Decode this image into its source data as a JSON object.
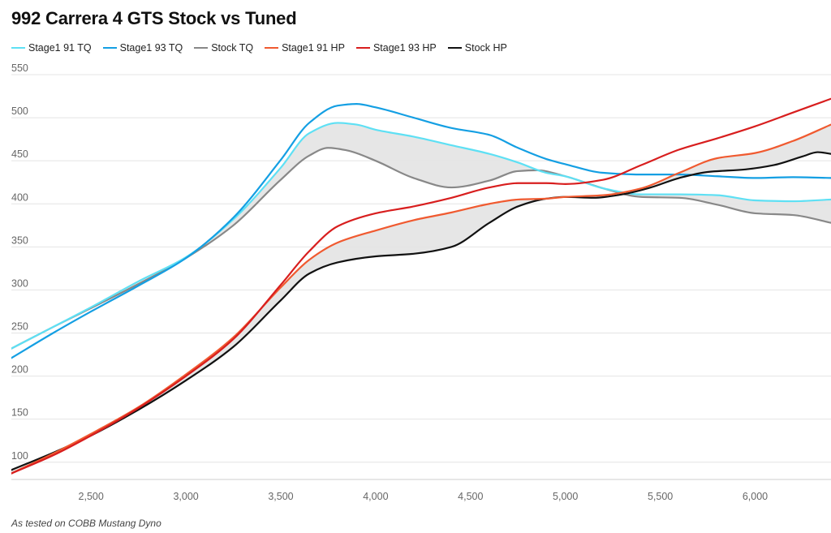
{
  "chart_data": {
    "type": "line",
    "title": "992 Carrera 4 GTS Stock vs Tuned",
    "footnote": "As tested on COBB Mustang Dyno",
    "xlabel": "",
    "ylabel": "",
    "xlim": [
      2080,
      6400
    ],
    "ylim": [
      80,
      550
    ],
    "x_ticks": [
      2500,
      3000,
      3500,
      4000,
      4500,
      5000,
      5500,
      6000
    ],
    "x_tick_labels": [
      "2,500",
      "3,000",
      "3,500",
      "4,000",
      "4,500",
      "5,000",
      "5,500",
      "6,000"
    ],
    "y_ticks": [
      100,
      150,
      200,
      250,
      300,
      350,
      400,
      450,
      500,
      550
    ],
    "y_tick_labels": [
      "100",
      "150",
      "200",
      "250",
      "300",
      "350",
      "400",
      "450",
      "500",
      "550"
    ],
    "grid": "horizontal",
    "legend_position": "top-left",
    "fill_between": [
      {
        "upper": "Stage1 91 TQ",
        "lower": "Stock TQ",
        "color": "#e3e3e3"
      },
      {
        "upper": "Stage1 91 HP",
        "lower": "Stock HP",
        "color": "#e3e3e3"
      }
    ],
    "series": [
      {
        "name": "Stage1 91 TQ",
        "color": "#5ee0f4",
        "x": [
          2080,
          2300,
          2500,
          2750,
          3000,
          3250,
          3500,
          3650,
          3800,
          3900,
          4000,
          4200,
          4400,
          4600,
          4750,
          4900,
          5000,
          5200,
          5400,
          5600,
          5800,
          6000,
          6200,
          6400
        ],
        "y": [
          232,
          257,
          280,
          310,
          338,
          382,
          442,
          482,
          494,
          492,
          486,
          478,
          468,
          458,
          448,
          436,
          432,
          418,
          411,
          411,
          410,
          404,
          403,
          405
        ]
      },
      {
        "name": "Stage1 93 TQ",
        "color": "#149fe3",
        "x": [
          2080,
          2300,
          2500,
          2750,
          3000,
          3250,
          3500,
          3650,
          3800,
          3900,
          4000,
          4200,
          4400,
          4600,
          4750,
          4900,
          5000,
          5200,
          5400,
          5600,
          5800,
          6000,
          6200,
          6400
        ],
        "y": [
          221,
          250,
          275,
          305,
          337,
          384,
          451,
          494,
          514,
          516,
          512,
          500,
          488,
          480,
          465,
          452,
          446,
          436,
          434,
          434,
          432,
          430,
          431,
          430
        ]
      },
      {
        "name": "Stock TQ",
        "color": "#888888",
        "x": [
          2080,
          2300,
          2500,
          2750,
          3000,
          3250,
          3500,
          3650,
          3750,
          3850,
          4000,
          4200,
          4400,
          4600,
          4750,
          4850,
          5000,
          5200,
          5400,
          5600,
          5800,
          6000,
          6200,
          6400
        ],
        "y": [
          232,
          257,
          279,
          307,
          337,
          375,
          428,
          456,
          465,
          462,
          450,
          430,
          419,
          427,
          438,
          439,
          432,
          418,
          408,
          407,
          399,
          389,
          387,
          378
        ]
      },
      {
        "name": "Stage1 91 HP",
        "color": "#f05a30",
        "x": [
          2080,
          2300,
          2500,
          2750,
          3000,
          3250,
          3500,
          3650,
          3800,
          4000,
          4200,
          4400,
          4600,
          4750,
          4900,
          5000,
          5200,
          5400,
          5600,
          5800,
          6000,
          6200,
          6400
        ],
        "y": [
          87,
          110,
          133,
          164,
          202,
          245,
          303,
          335,
          355,
          369,
          381,
          390,
          400,
          405,
          406,
          408,
          410,
          418,
          436,
          453,
          459,
          473,
          492
        ]
      },
      {
        "name": "Stage1 93 HP",
        "color": "#d81e1e",
        "x": [
          2080,
          2300,
          2500,
          2750,
          3000,
          3250,
          3500,
          3650,
          3800,
          4000,
          4200,
          4400,
          4600,
          4750,
          4900,
          5000,
          5200,
          5400,
          5600,
          5800,
          6000,
          6200,
          6400
        ],
        "y": [
          87,
          108,
          131,
          163,
          200,
          243,
          306,
          345,
          374,
          389,
          397,
          407,
          419,
          424,
          424,
          423,
          428,
          445,
          463,
          476,
          490,
          506,
          522
        ]
      },
      {
        "name": "Stock HP",
        "color": "#111111",
        "x": [
          2080,
          2300,
          2500,
          2750,
          3000,
          3250,
          3500,
          3650,
          3800,
          4000,
          4200,
          4400,
          4600,
          4750,
          4900,
          5000,
          5150,
          5300,
          5450,
          5600,
          5750,
          5950,
          6100,
          6250,
          6330,
          6400
        ],
        "y": [
          91,
          111,
          131,
          161,
          195,
          234,
          288,
          319,
          332,
          339,
          342,
          350,
          378,
          397,
          406,
          408,
          407,
          411,
          419,
          430,
          437,
          440,
          445,
          455,
          460,
          458
        ]
      }
    ]
  }
}
